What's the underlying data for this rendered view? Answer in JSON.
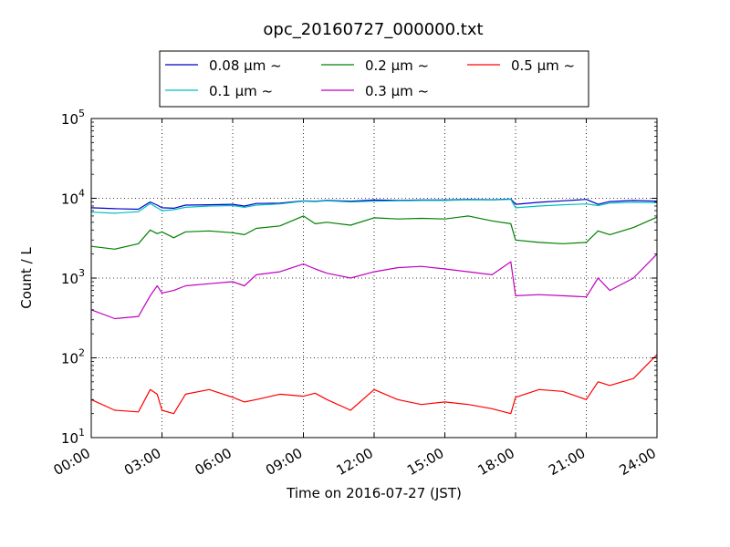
{
  "chart_data": {
    "type": "line",
    "title": "opc_20160727_000000.txt",
    "xlabel": "Time on 2016-07-27 (JST)",
    "ylabel": "Count / L",
    "yscale": "log",
    "xlim": [
      0,
      24
    ],
    "ylim": [
      10,
      100000
    ],
    "grid": true,
    "legend_position": "top",
    "x_ticks": [
      {
        "value": 0,
        "label": "00:00"
      },
      {
        "value": 3,
        "label": "03:00"
      },
      {
        "value": 6,
        "label": "06:00"
      },
      {
        "value": 9,
        "label": "09:00"
      },
      {
        "value": 12,
        "label": "12:00"
      },
      {
        "value": 15,
        "label": "15:00"
      },
      {
        "value": 18,
        "label": "18:00"
      },
      {
        "value": 21,
        "label": "21:00"
      },
      {
        "value": 24,
        "label": "24:00"
      }
    ],
    "y_ticks": [
      {
        "value": 10,
        "mantissa": "10",
        "exponent": "1"
      },
      {
        "value": 100,
        "mantissa": "10",
        "exponent": "2"
      },
      {
        "value": 1000,
        "mantissa": "10",
        "exponent": "3"
      },
      {
        "value": 10000,
        "mantissa": "10",
        "exponent": "4"
      },
      {
        "value": 100000,
        "mantissa": "10",
        "exponent": "5"
      }
    ],
    "x": [
      0,
      1,
      2,
      2.5,
      2.8,
      3,
      3.5,
      4,
      5,
      6,
      6.5,
      7,
      8,
      9,
      9.5,
      10,
      11,
      12,
      13,
      14,
      15,
      16,
      17,
      17.8,
      18,
      19,
      20,
      21,
      21.5,
      22,
      23,
      24
    ],
    "series": [
      {
        "name": "0.08 μm ~",
        "color": "#0000cc",
        "values": [
          7600,
          7400,
          7300,
          9000,
          8200,
          7600,
          7500,
          8200,
          8300,
          8400,
          8000,
          8600,
          8700,
          9300,
          9200,
          9400,
          9200,
          9500,
          9400,
          9500,
          9500,
          9700,
          9600,
          9800,
          8400,
          8900,
          9300,
          9700,
          8400,
          9100,
          9400,
          9200
        ]
      },
      {
        "name": "0.1 μm ~",
        "color": "#00bfbf",
        "values": [
          6700,
          6500,
          6800,
          8600,
          7600,
          7000,
          7200,
          7700,
          8000,
          8100,
          7700,
          8200,
          8500,
          9200,
          9100,
          9300,
          9000,
          9200,
          9300,
          9400,
          9400,
          9600,
          9500,
          9700,
          7600,
          8000,
          8300,
          8500,
          8100,
          8700,
          8900,
          8800
        ]
      },
      {
        "name": "0.2 μm ~",
        "color": "#008000",
        "values": [
          2500,
          2300,
          2700,
          4000,
          3600,
          3800,
          3200,
          3800,
          3900,
          3700,
          3500,
          4200,
          4500,
          6000,
          4800,
          5000,
          4600,
          5700,
          5500,
          5600,
          5500,
          6000,
          5200,
          4800,
          3000,
          2800,
          2700,
          2800,
          3900,
          3500,
          4300,
          5800
        ]
      },
      {
        "name": "0.3 μm ~",
        "color": "#bf00bf",
        "values": [
          400,
          310,
          330,
          600,
          800,
          650,
          700,
          800,
          850,
          900,
          800,
          1100,
          1200,
          1500,
          1300,
          1150,
          1000,
          1200,
          1350,
          1400,
          1300,
          1200,
          1100,
          1600,
          600,
          620,
          600,
          580,
          1000,
          700,
          1000,
          2000
        ]
      },
      {
        "name": "0.5 μm ~",
        "color": "#ff0000",
        "values": [
          30,
          22,
          21,
          40,
          35,
          22,
          20,
          35,
          40,
          32,
          28,
          30,
          35,
          33,
          36,
          30,
          22,
          40,
          30,
          26,
          28,
          26,
          23,
          20,
          32,
          40,
          38,
          30,
          50,
          45,
          55,
          110
        ]
      }
    ]
  }
}
